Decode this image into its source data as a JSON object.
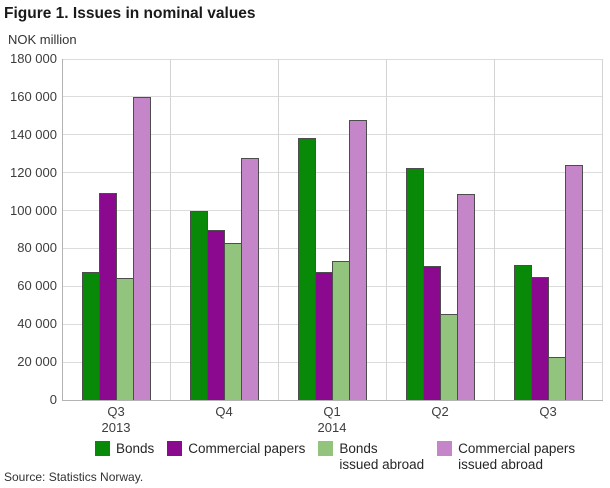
{
  "source": "Source: Statistics Norway.",
  "chart_data": {
    "type": "bar",
    "title": "Figure 1. Issues in nominal values",
    "ylabel": "NOK million",
    "xlabel": "",
    "ylim": [
      0,
      180000
    ],
    "ytick_step": 20000,
    "ytick_labels": [
      "180 000",
      "160 000",
      "140 000",
      "120 000",
      "100 000",
      "80 000",
      "60 000",
      "40 000",
      "20 000",
      "0"
    ],
    "grid": true,
    "legend_position": "bottom",
    "categories": [
      "Q3",
      "Q4",
      "Q1",
      "Q2",
      "Q3"
    ],
    "category_sublabels": [
      "2013",
      "",
      "2014",
      "",
      ""
    ],
    "series": [
      {
        "name": "Bonds",
        "name_line2": "",
        "color": "#088a08",
        "values": [
          67500,
          100000,
          138500,
          122500,
          71500
        ]
      },
      {
        "name": "Commercial papers",
        "name_line2": "",
        "color": "#8a098f",
        "values": [
          109500,
          90000,
          67500,
          70500,
          65000
        ]
      },
      {
        "name": "Bonds",
        "name_line2": "issued abroad",
        "color": "#93c47d",
        "values": [
          64500,
          83000,
          73500,
          45500,
          22500
        ]
      },
      {
        "name": "Commercial papers",
        "name_line2": "issued abroad",
        "color": "#c586c9",
        "values": [
          160000,
          127500,
          148000,
          109000,
          124000
        ]
      }
    ]
  }
}
